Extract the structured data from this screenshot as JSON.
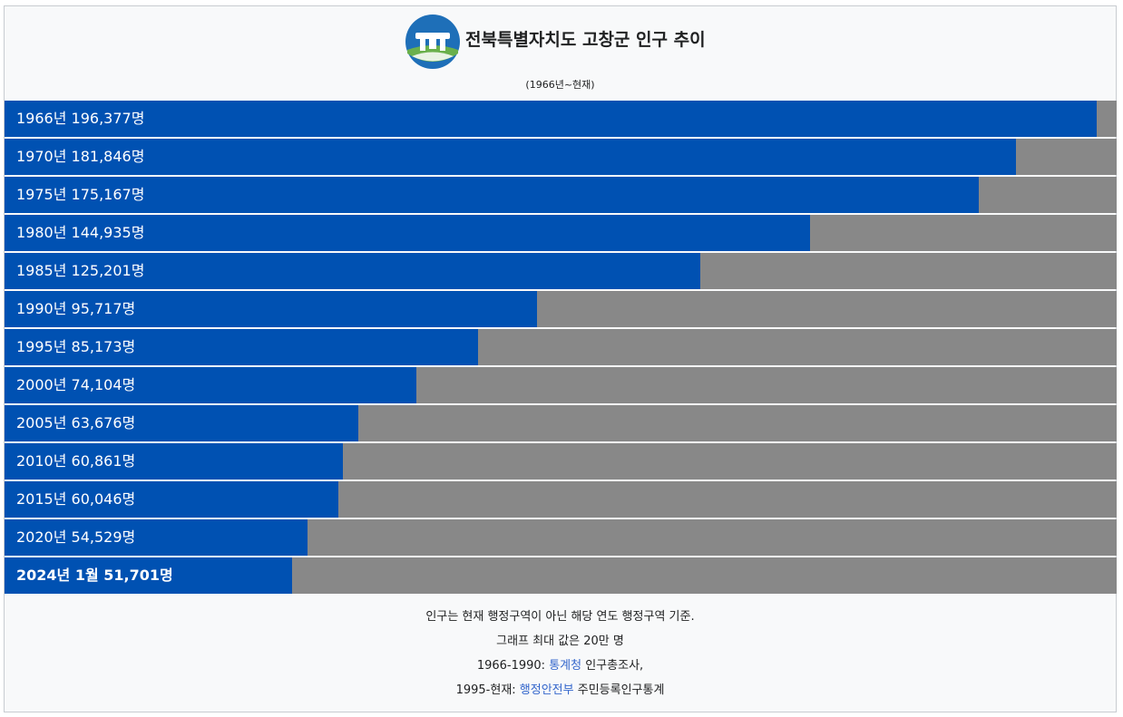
{
  "header": {
    "title": "전북특별자치도 고창군 인구 추이",
    "subtitle": "(1966년~현재)"
  },
  "colors": {
    "bar_fill": "#0051b2",
    "bar_background": "#888888",
    "link": "#3366cc"
  },
  "chart_data": {
    "type": "bar",
    "orientation": "horizontal",
    "title": "전북특별자치도 고창군 인구 추이",
    "subtitle": "(1966년~현재)",
    "xlim": [
      0,
      200000
    ],
    "categories": [
      "1966년",
      "1970년",
      "1975년",
      "1980년",
      "1985년",
      "1990년",
      "1995년",
      "2000년",
      "2005년",
      "2010년",
      "2015년",
      "2020년",
      "2024년 1월"
    ],
    "values": [
      196377,
      181846,
      175167,
      144935,
      125201,
      95717,
      85173,
      74104,
      63676,
      60861,
      60046,
      54529,
      51701
    ],
    "labels": [
      "1966년 196,377명",
      "1970년 181,846명",
      "1975년 175,167명",
      "1980년 144,935명",
      "1985년 125,201명",
      "1990년 95,717명",
      "1995년 85,173명",
      "2000년 74,104명",
      "2005년 63,676명",
      "2010년 60,861명",
      "2015년 60,046명",
      "2020년 54,529명",
      "2024년 1월 51,701명"
    ],
    "bold_last": true
  },
  "notes": {
    "line1": "인구는 현재 행정구역이 아닌 해당 연도 행정구역 기준.",
    "line2": "그래프 최대 값은 20만 명",
    "line3_prefix": "1966-1990: ",
    "line3_link": "통계청",
    "line3_suffix": " 인구총조사,",
    "line4_prefix": "1995-현재: ",
    "line4_link": "행정안전부",
    "line4_suffix": " 주민등록인구통계"
  }
}
